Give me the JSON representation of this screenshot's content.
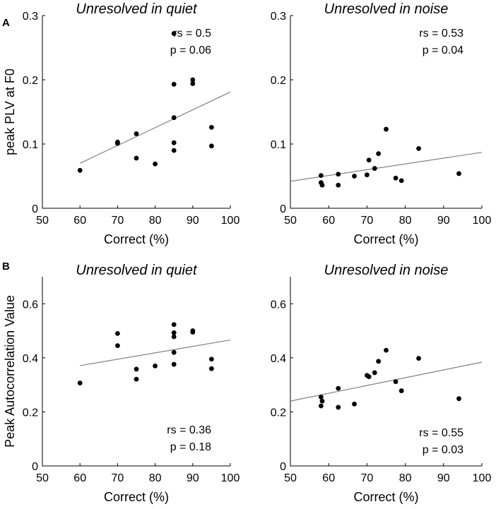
{
  "panels": [
    {
      "id": "A",
      "label": "A"
    },
    {
      "id": "B",
      "label": "B"
    }
  ],
  "chart_data": [
    {
      "type": "scatter",
      "panel": "A",
      "title": "Unresolved in quiet",
      "xlabel": "Correct (%)",
      "ylabel": "peak PLV at F0",
      "xlim": [
        50,
        100
      ],
      "ylim": [
        0,
        0.3
      ],
      "xticks": [
        "50",
        "60",
        "70",
        "80",
        "90",
        "100"
      ],
      "yticks": [
        "0",
        "0.1",
        "0.2",
        "0.3"
      ],
      "points": [
        [
          60,
          0.059
        ],
        [
          70,
          0.103
        ],
        [
          70,
          0.101
        ],
        [
          75,
          0.116
        ],
        [
          75,
          0.078
        ],
        [
          80,
          0.069
        ],
        [
          85,
          0.272
        ],
        [
          85,
          0.193
        ],
        [
          85,
          0.141
        ],
        [
          85,
          0.102
        ],
        [
          85,
          0.09
        ],
        [
          90,
          0.2
        ],
        [
          90,
          0.194
        ],
        [
          95,
          0.126
        ],
        [
          95,
          0.097
        ]
      ],
      "fit_line": [
        [
          60,
          0.07
        ],
        [
          100,
          0.181
        ]
      ],
      "annotations": [
        "rs = 0.5",
        "p = 0.06"
      ]
    },
    {
      "type": "scatter",
      "panel": "A",
      "title": "Unresolved in noise",
      "xlabel": "Correct (%)",
      "ylabel": "",
      "xlim": [
        50,
        100
      ],
      "ylim": [
        0,
        0.3
      ],
      "xticks": [
        "50",
        "60",
        "70",
        "80",
        "90",
        "100"
      ],
      "yticks": [
        "0",
        "0.1",
        "0.2",
        "0.3"
      ],
      "points": [
        [
          58,
          0.051
        ],
        [
          58,
          0.04
        ],
        [
          58.3,
          0.036
        ],
        [
          62.5,
          0.053
        ],
        [
          62.5,
          0.036
        ],
        [
          66.7,
          0.05
        ],
        [
          70,
          0.052
        ],
        [
          70.5,
          0.075
        ],
        [
          72,
          0.062
        ],
        [
          73,
          0.085
        ],
        [
          75,
          0.123
        ],
        [
          77.5,
          0.047
        ],
        [
          79,
          0.043
        ],
        [
          83.5,
          0.093
        ],
        [
          94,
          0.054
        ]
      ],
      "fit_line": [
        [
          50,
          0.042
        ],
        [
          100,
          0.087
        ]
      ],
      "annotations": [
        "rs = 0.53",
        "p = 0.04"
      ]
    },
    {
      "type": "scatter",
      "panel": "B",
      "title": "Unresolved in quiet",
      "xlabel": "Correct (%)",
      "ylabel": "Peak Autocorrelation Value",
      "xlim": [
        50,
        100
      ],
      "ylim": [
        0,
        0.7
      ],
      "xticks": [
        "50",
        "60",
        "70",
        "80",
        "90",
        "100"
      ],
      "yticks": [
        "0",
        "0.2",
        "0.4",
        "0.6"
      ],
      "points": [
        [
          60,
          0.307
        ],
        [
          70,
          0.49
        ],
        [
          70,
          0.445
        ],
        [
          75,
          0.358
        ],
        [
          75,
          0.321
        ],
        [
          80,
          0.37
        ],
        [
          85,
          0.523
        ],
        [
          85,
          0.493
        ],
        [
          85,
          0.478
        ],
        [
          85,
          0.42
        ],
        [
          85,
          0.376
        ],
        [
          90,
          0.5
        ],
        [
          90,
          0.495
        ],
        [
          95,
          0.395
        ],
        [
          95,
          0.36
        ]
      ],
      "fit_line": [
        [
          60,
          0.371
        ],
        [
          100,
          0.466
        ]
      ],
      "annotations": [
        "rs = 0.36",
        "p = 0.18"
      ]
    },
    {
      "type": "scatter",
      "panel": "B",
      "title": "Unresolved in noise",
      "xlabel": "Correct (%)",
      "ylabel": "",
      "xlim": [
        50,
        100
      ],
      "ylim": [
        0,
        0.7
      ],
      "xticks": [
        "50",
        "60",
        "70",
        "80",
        "90",
        "100"
      ],
      "yticks": [
        "0",
        "0.2",
        "0.4",
        "0.6"
      ],
      "points": [
        [
          58,
          0.255
        ],
        [
          58,
          0.222
        ],
        [
          58.3,
          0.24
        ],
        [
          62.5,
          0.287
        ],
        [
          62.5,
          0.217
        ],
        [
          66.7,
          0.229
        ],
        [
          70,
          0.335
        ],
        [
          70.5,
          0.33
        ],
        [
          72,
          0.345
        ],
        [
          73,
          0.387
        ],
        [
          75,
          0.428
        ],
        [
          77.5,
          0.312
        ],
        [
          79,
          0.278
        ],
        [
          83.5,
          0.398
        ],
        [
          94,
          0.249
        ]
      ],
      "fit_line": [
        [
          50,
          0.24
        ],
        [
          100,
          0.384
        ]
      ],
      "annotations": [
        "rs = 0.55",
        "p = 0.03"
      ]
    }
  ]
}
